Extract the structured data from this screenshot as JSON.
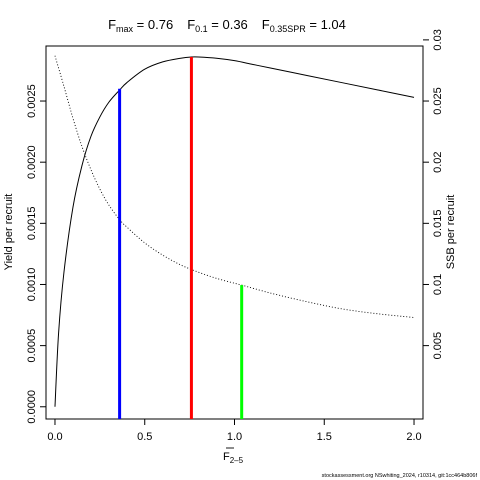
{
  "chart_data": {
    "type": "line",
    "title_parts": {
      "fmax_sym": "F",
      "fmax_sub": "max",
      "fmax_eq": " = 0.76",
      "f01_sym": "F",
      "f01_sub": "0.1",
      "f01_eq": " = 0.36",
      "fspr_sym": "F",
      "fspr_sub": "0.35SPR",
      "fspr_eq": " = 1.04"
    },
    "xlabel_parts": {
      "symbol": "F",
      "sub": "2–5"
    },
    "ylabel_left": "Yield per recruit",
    "ylabel_right": "SSB per recruit",
    "xlim": [
      -0.05,
      2.05
    ],
    "ylim_left": [
      -0.0001,
      0.00295
    ],
    "ylim_right": [
      -0.001,
      0.0295
    ],
    "x_ticks": [
      0.0,
      0.5,
      1.0,
      1.5,
      2.0
    ],
    "x_tick_labels": [
      "0.0",
      "0.5",
      "1.0",
      "1.5",
      "2.0"
    ],
    "y_left_ticks": [
      0.0,
      0.0005,
      0.001,
      0.0015,
      0.002,
      0.0025
    ],
    "y_left_tick_labels": [
      "0.0000",
      "0.0005",
      "0.0010",
      "0.0015",
      "0.0020",
      "0.0025"
    ],
    "y_right_ticks": [
      0.005,
      0.01,
      0.015,
      0.02,
      0.025,
      0.03
    ],
    "y_right_tick_labels": [
      "0.005",
      "0.01",
      "0.015",
      "0.02",
      "0.025",
      "0.03"
    ],
    "series": [
      {
        "axis": "left",
        "style": "solid",
        "color": "#000000",
        "x": [
          0.0,
          0.02,
          0.05,
          0.1,
          0.15,
          0.2,
          0.25,
          0.3,
          0.36,
          0.4,
          0.5,
          0.6,
          0.7,
          0.76,
          0.8,
          0.9,
          1.0,
          1.1,
          1.2,
          1.4,
          1.6,
          1.8,
          2.0
        ],
        "y": [
          0.0,
          0.0006,
          0.0011,
          0.00163,
          0.00197,
          0.00221,
          0.00237,
          0.00249,
          0.00259,
          0.00265,
          0.00276,
          0.00282,
          0.00285,
          0.00286,
          0.00286,
          0.00285,
          0.00283,
          0.0028,
          0.00277,
          0.00271,
          0.00265,
          0.00259,
          0.00253
        ]
      },
      {
        "axis": "right",
        "style": "dotted",
        "color": "#000000",
        "x": [
          0.0,
          0.05,
          0.1,
          0.15,
          0.2,
          0.25,
          0.3,
          0.36,
          0.4,
          0.5,
          0.6,
          0.7,
          0.8,
          0.9,
          1.0,
          1.04,
          1.2,
          1.4,
          1.6,
          1.8,
          2.0
        ],
        "y": [
          0.0287,
          0.0262,
          0.0236,
          0.0213,
          0.0194,
          0.0178,
          0.0165,
          0.0153,
          0.0147,
          0.0134,
          0.0124,
          0.0116,
          0.011,
          0.0105,
          0.0101,
          0.00995,
          0.0093,
          0.0086,
          0.008,
          0.0076,
          0.0073
        ]
      }
    ],
    "reference_lines": [
      {
        "x": 0.36,
        "y_from": 0.0,
        "y_to": 0.0026,
        "axis": "left",
        "color": "#0000ff"
      },
      {
        "x": 0.76,
        "y_from": 0.0,
        "y_to": 0.00286,
        "axis": "left",
        "color": "#ff0000"
      },
      {
        "x": 1.04,
        "y_from": 0.0,
        "y_to": 0.00995,
        "axis": "right",
        "color": "#00ff00"
      }
    ],
    "grid": false,
    "legend": "none"
  },
  "footer_text": "stockassessment.org NSwhiting_2024, r10314, git:1cc464b806f"
}
